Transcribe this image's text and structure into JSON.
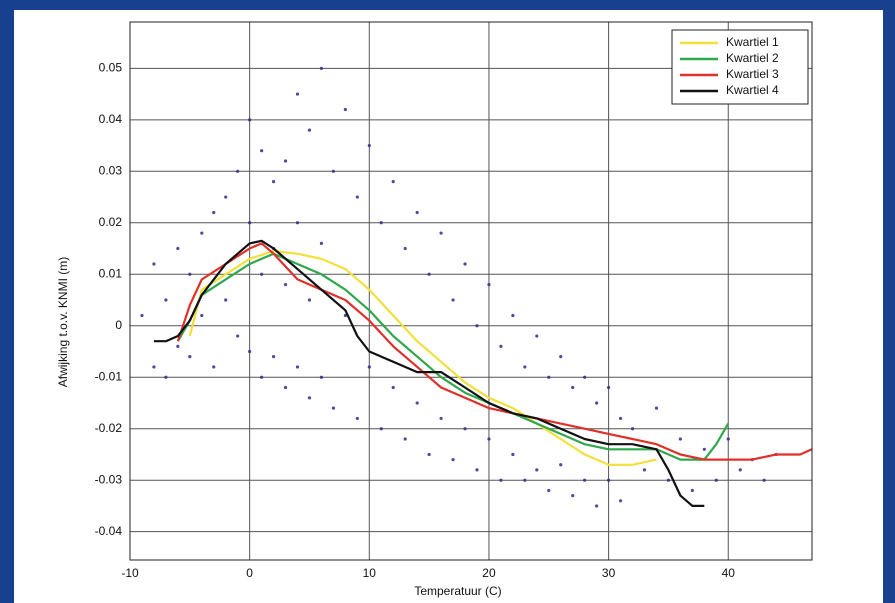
{
  "chart_data": {
    "type": "scatter",
    "x_label": "Temperatuur (C)",
    "y_label": "Afwijking t.o.v. KNMI (m)",
    "xlim": [
      -10,
      47
    ],
    "ylim": [
      -0.0455,
      0.059
    ],
    "xticks": [
      -10,
      0,
      10,
      20,
      30,
      40
    ],
    "yticks": [
      -0.04,
      -0.03,
      -0.02,
      -0.01,
      0,
      0.01,
      0.02,
      0.03,
      0.04,
      0.05
    ],
    "grid": true,
    "legend_position": "upper right",
    "points": {
      "color": "#2b2b8f",
      "x": [
        -9,
        -8,
        -8,
        -7,
        -7,
        -6,
        -6,
        -5,
        -5,
        -4,
        -4,
        -3,
        -3,
        -2,
        -2,
        -1,
        -1,
        0,
        0,
        0,
        1,
        1,
        1,
        2,
        2,
        2,
        3,
        3,
        3,
        4,
        4,
        4,
        5,
        5,
        5,
        6,
        6,
        6,
        7,
        7,
        8,
        8,
        9,
        9,
        10,
        10,
        11,
        11,
        12,
        12,
        13,
        13,
        14,
        14,
        15,
        15,
        16,
        16,
        17,
        17,
        18,
        18,
        19,
        19,
        20,
        20,
        21,
        21,
        22,
        22,
        23,
        23,
        24,
        24,
        25,
        25,
        26,
        26,
        27,
        27,
        28,
        28,
        29,
        29,
        30,
        30,
        31,
        31,
        32,
        33,
        34,
        35,
        36,
        37,
        38,
        39,
        40,
        41,
        42,
        43,
        44
      ],
      "values": [
        0.002,
        -0.008,
        0.012,
        0.005,
        -0.01,
        0.015,
        -0.004,
        0.01,
        -0.006,
        0.018,
        0.002,
        0.022,
        -0.008,
        0.025,
        0.005,
        0.03,
        -0.002,
        0.04,
        0.02,
        -0.005,
        0.034,
        0.01,
        -0.01,
        0.028,
        0.015,
        -0.006,
        0.032,
        0.008,
        -0.012,
        0.045,
        0.02,
        -0.008,
        0.038,
        0.005,
        -0.014,
        0.05,
        0.016,
        -0.01,
        0.03,
        -0.016,
        0.042,
        0.002,
        0.025,
        -0.018,
        0.035,
        -0.008,
        0.02,
        -0.02,
        0.028,
        -0.012,
        0.015,
        -0.022,
        0.022,
        -0.015,
        0.01,
        -0.025,
        0.018,
        -0.018,
        0.005,
        -0.026,
        0.012,
        -0.02,
        0,
        -0.028,
        0.008,
        -0.022,
        -0.004,
        -0.03,
        0.002,
        -0.025,
        -0.008,
        -0.03,
        -0.002,
        -0.028,
        -0.01,
        -0.032,
        -0.006,
        -0.027,
        -0.012,
        -0.033,
        -0.01,
        -0.03,
        -0.015,
        -0.035,
        -0.012,
        -0.03,
        -0.018,
        -0.034,
        -0.02,
        -0.028,
        -0.016,
        -0.03,
        -0.022,
        -0.032,
        -0.024,
        -0.03,
        -0.022,
        -0.028,
        -0.026,
        -0.03,
        -0.025
      ]
    },
    "series": [
      {
        "name": "Kwartiel 1",
        "color": "#f2e03a",
        "x": [
          -5,
          -4,
          -2,
          0,
          2,
          4,
          6,
          8,
          10,
          12,
          14,
          16,
          18,
          20,
          22,
          24,
          26,
          28,
          30,
          32,
          34
        ],
        "values": [
          -0.002,
          0.007,
          0.01,
          0.013,
          0.0145,
          0.014,
          0.013,
          0.011,
          0.007,
          0.002,
          -0.003,
          -0.007,
          -0.011,
          -0.014,
          -0.016,
          -0.019,
          -0.022,
          -0.025,
          -0.027,
          -0.027,
          -0.026
        ]
      },
      {
        "name": "Kwartiel 2",
        "color": "#2ea84a",
        "x": [
          -6,
          -5,
          -4,
          -2,
          0,
          2,
          4,
          6,
          8,
          10,
          12,
          14,
          16,
          18,
          20,
          22,
          24,
          26,
          28,
          30,
          32,
          34,
          36,
          38,
          39,
          40
        ],
        "values": [
          -0.003,
          0.001,
          0.006,
          0.009,
          0.012,
          0.014,
          0.012,
          0.01,
          0.007,
          0.003,
          -0.002,
          -0.006,
          -0.01,
          -0.013,
          -0.015,
          -0.017,
          -0.019,
          -0.021,
          -0.023,
          -0.024,
          -0.024,
          -0.024,
          -0.026,
          -0.026,
          -0.023,
          -0.019
        ]
      },
      {
        "name": "Kwartiel 3",
        "color": "#e0302a",
        "x": [
          -6,
          -5,
          -4,
          -2,
          0,
          1,
          2,
          4,
          6,
          8,
          10,
          12,
          14,
          16,
          18,
          20,
          22,
          24,
          26,
          28,
          30,
          32,
          34,
          36,
          38,
          40,
          42,
          44,
          46,
          47
        ],
        "values": [
          -0.003,
          0.004,
          0.009,
          0.012,
          0.015,
          0.016,
          0.014,
          0.009,
          0.007,
          0.005,
          0.001,
          -0.004,
          -0.008,
          -0.012,
          -0.014,
          -0.016,
          -0.017,
          -0.018,
          -0.019,
          -0.02,
          -0.021,
          -0.022,
          -0.023,
          -0.025,
          -0.026,
          -0.026,
          -0.026,
          -0.025,
          -0.025,
          -0.024
        ]
      },
      {
        "name": "Kwartiel 4",
        "color": "#111111",
        "x": [
          -8,
          -7,
          -6,
          -5,
          -4,
          -2,
          0,
          1,
          2,
          4,
          6,
          8,
          9,
          10,
          12,
          14,
          16,
          18,
          20,
          22,
          24,
          26,
          28,
          30,
          32,
          34,
          35,
          36,
          37,
          38
        ],
        "values": [
          -0.003,
          -0.003,
          -0.002,
          0.001,
          0.006,
          0.012,
          0.016,
          0.0165,
          0.015,
          0.011,
          0.007,
          0.003,
          -0.002,
          -0.005,
          -0.007,
          -0.009,
          -0.009,
          -0.012,
          -0.015,
          -0.017,
          -0.018,
          -0.02,
          -0.022,
          -0.023,
          -0.023,
          -0.024,
          -0.028,
          -0.033,
          -0.035,
          -0.035
        ]
      }
    ]
  }
}
